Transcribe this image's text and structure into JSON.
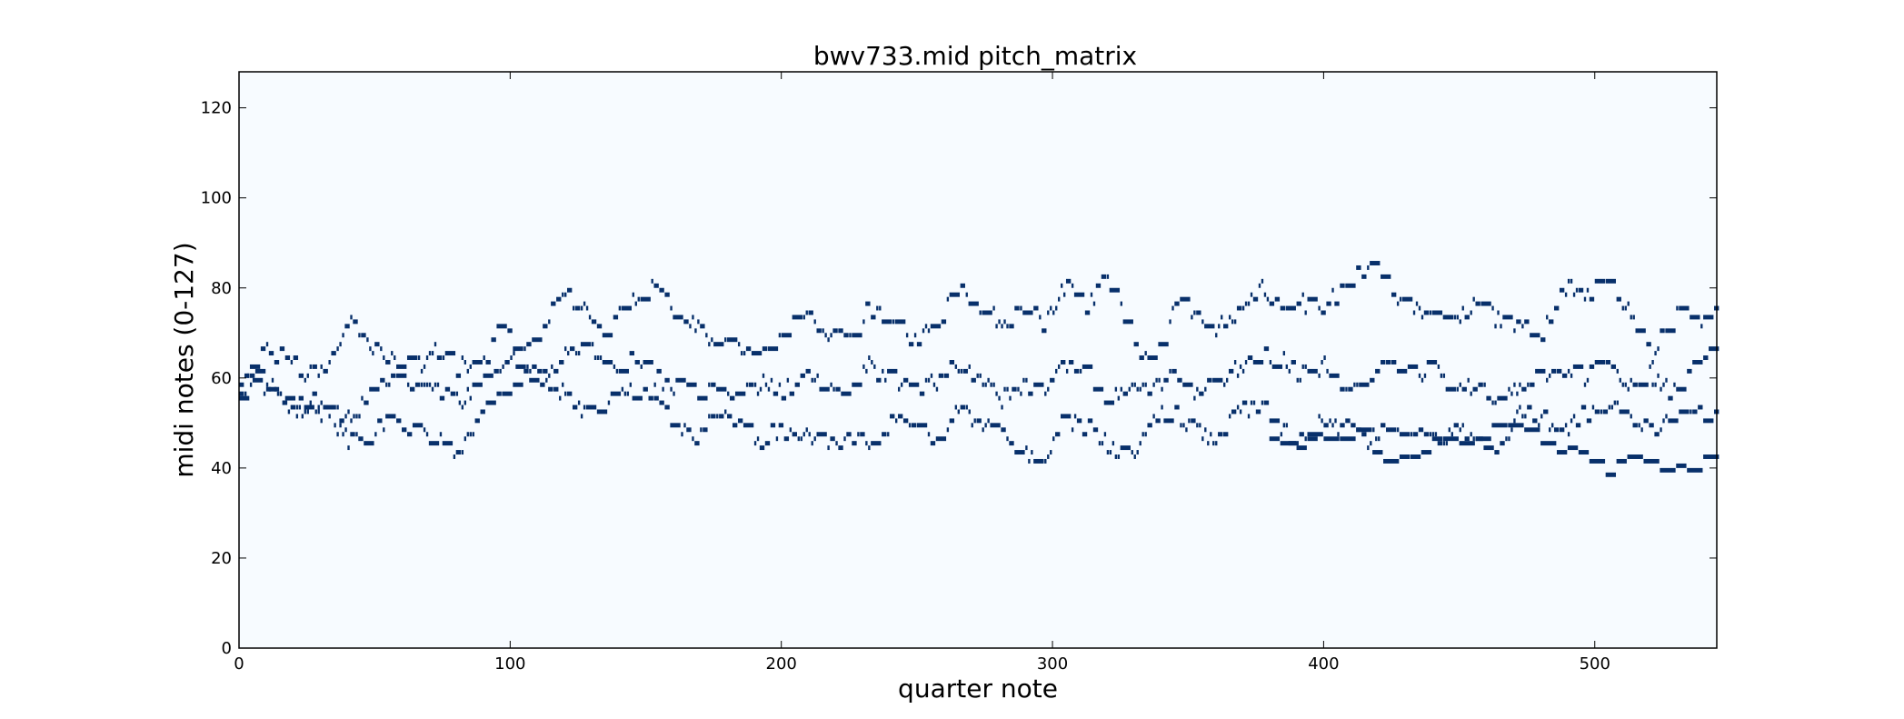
{
  "chart_data": {
    "type": "heatmap",
    "title": "bwv733.mid pitch_matrix",
    "xlabel": "quarter note",
    "ylabel": "midi notes (0-127)",
    "xlim": [
      0,
      545
    ],
    "ylim": [
      0,
      128
    ],
    "xticks": [
      0,
      100,
      200,
      300,
      400,
      500
    ],
    "yticks": [
      0,
      20,
      40,
      60,
      80,
      100,
      120
    ],
    "grid": false,
    "legend": "none",
    "colors": {
      "background": "#f7fbff",
      "note": "#08306b"
    },
    "voices": [
      {
        "name": "",
        "x": [
          0,
          8,
          16,
          24,
          32,
          40,
          48,
          56,
          64,
          72,
          80,
          88,
          96,
          104,
          112,
          120,
          128,
          136,
          144,
          152,
          160,
          168,
          176,
          184,
          192,
          200,
          208,
          216,
          224,
          232,
          240,
          248,
          256,
          264,
          272,
          280,
          288,
          296,
          304,
          312,
          320,
          328,
          336,
          344,
          352,
          360,
          368,
          376,
          384,
          392,
          400,
          408,
          416,
          424,
          432,
          440,
          448,
          456,
          464,
          472,
          480,
          488,
          496,
          504,
          512,
          520,
          528,
          536,
          545
        ],
        "y": [
          60,
          66,
          64,
          60,
          62,
          72,
          66,
          64,
          62,
          65,
          62,
          62,
          70,
          66,
          72,
          78,
          74,
          70,
          76,
          82,
          74,
          72,
          67,
          66,
          64,
          70,
          74,
          68,
          70,
          75,
          72,
          68,
          70,
          79,
          76,
          72,
          74,
          72,
          80,
          76,
          82,
          67,
          62,
          76,
          74,
          70,
          74,
          80,
          74,
          76,
          74,
          82,
          84,
          78,
          76,
          74,
          72,
          76,
          72,
          72,
          68,
          80,
          78,
          80,
          76,
          62,
          74,
          72,
          74
        ]
      },
      {
        "name": "",
        "x": [
          0,
          8,
          16,
          24,
          32,
          40,
          48,
          56,
          64,
          72,
          80,
          88,
          96,
          104,
          112,
          120,
          128,
          136,
          144,
          152,
          160,
          168,
          176,
          184,
          192,
          200,
          208,
          216,
          224,
          232,
          240,
          248,
          256,
          264,
          272,
          280,
          288,
          296,
          304,
          312,
          320,
          328,
          336,
          344,
          352,
          360,
          368,
          376,
          384,
          392,
          400,
          408,
          416,
          424,
          432,
          440,
          448,
          456,
          464,
          472,
          480,
          488,
          496,
          504,
          512,
          520,
          528,
          536,
          545
        ],
        "y": [
          57,
          60,
          56,
          54,
          53,
          50,
          55,
          60,
          57,
          58,
          54,
          58,
          62,
          64,
          60,
          64,
          66,
          62,
          64,
          60,
          58,
          55,
          58,
          56,
          58,
          56,
          60,
          58,
          55,
          62,
          60,
          56,
          58,
          62,
          60,
          55,
          58,
          56,
          62,
          60,
          55,
          58,
          56,
          60,
          56,
          58,
          62,
          66,
          63,
          60,
          62,
          58,
          60,
          62,
          60,
          62,
          56,
          58,
          55,
          58,
          60,
          62,
          60,
          62,
          58,
          60,
          57,
          64,
          66
        ]
      },
      {
        "name": "",
        "x": [
          0,
          8,
          16,
          24,
          32,
          40,
          48,
          56,
          64,
          72,
          80,
          88,
          96,
          104,
          112,
          120,
          128,
          136,
          144,
          152,
          160,
          168,
          176,
          184,
          192,
          200,
          208,
          216,
          224,
          232,
          240,
          248,
          256,
          264,
          272,
          280,
          288,
          296,
          304,
          312,
          320,
          328,
          336,
          344,
          352,
          360,
          368,
          376,
          384,
          392,
          400,
          408,
          416,
          424,
          432,
          440,
          448,
          456,
          464,
          472,
          480,
          488,
          496,
          504,
          512,
          520,
          528,
          536,
          545
        ],
        "y": [
          57,
          57,
          55,
          52,
          52,
          45,
          47,
          50,
          48,
          46,
          42,
          50,
          57,
          60,
          58,
          56,
          52,
          55,
          56,
          54,
          50,
          46,
          52,
          48,
          46,
          48,
          47,
          44,
          46,
          44,
          50,
          48,
          46,
          52,
          50,
          48,
          44,
          40,
          50,
          48,
          45,
          42,
          50,
          52,
          48,
          46,
          52,
          54,
          48,
          46,
          50,
          48,
          46,
          50,
          48,
          46,
          48,
          46,
          44,
          52,
          50,
          48,
          52,
          54,
          50,
          48,
          50,
          52,
          50
        ]
      },
      {
        "name": "",
        "x": [
          380,
          388,
          396,
          404,
          412,
          420,
          428,
          456,
          472,
          480,
          488,
          496,
          502,
          508,
          516,
          524,
          532,
          536,
          540,
          545
        ],
        "y": [
          46,
          46,
          45,
          45,
          46,
          43,
          41,
          48,
          48,
          43,
          43,
          43,
          38,
          41,
          40,
          38,
          38,
          42,
          45,
          38
        ]
      }
    ]
  }
}
